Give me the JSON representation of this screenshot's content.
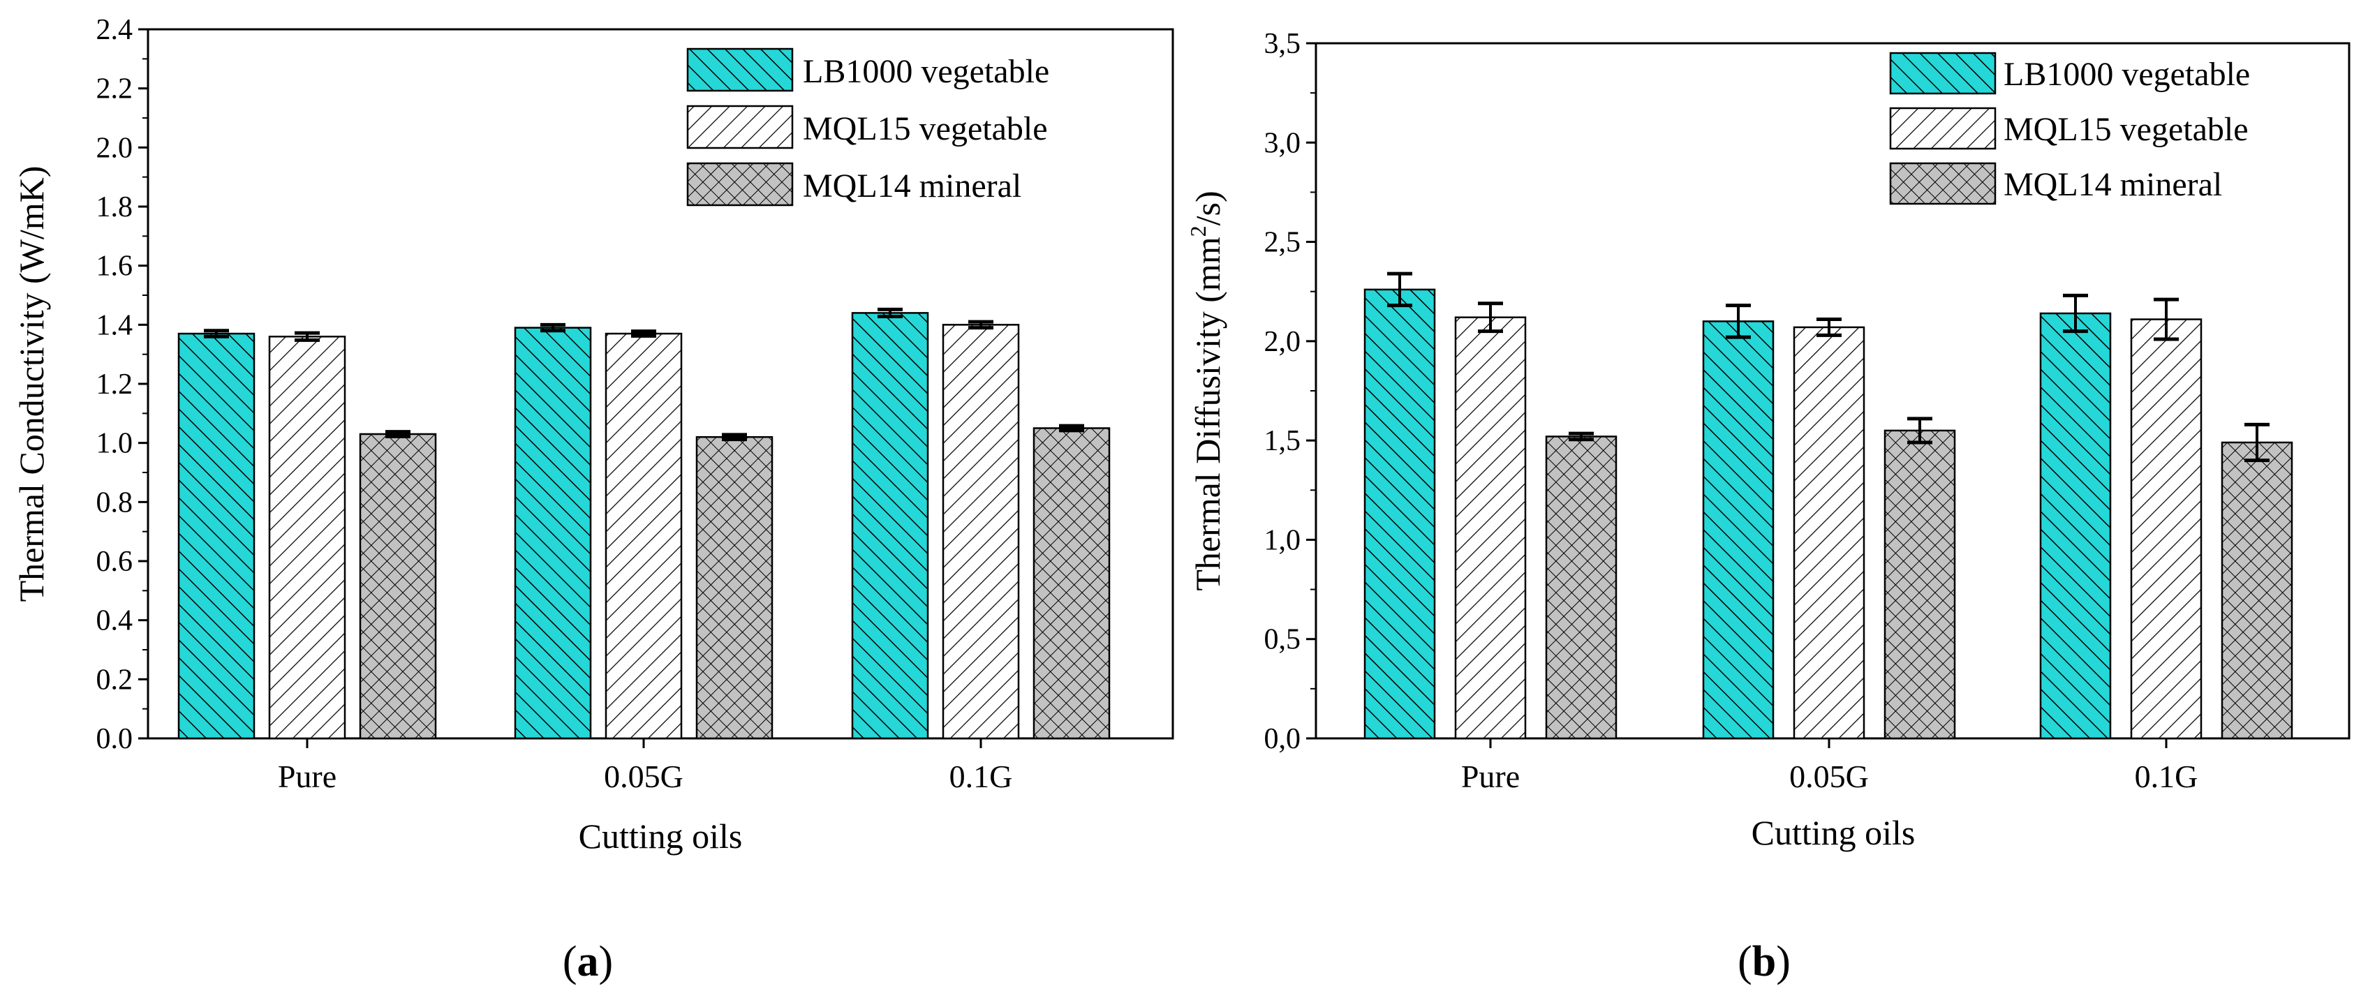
{
  "colors": {
    "lb1000": "#25d7d7",
    "mql15": "#ffffff",
    "mql14": "#c2c2c2",
    "stroke": "#000000"
  },
  "chart_data": [
    {
      "type": "bar",
      "panel_label": {
        "open": "(",
        "letter": "a",
        "close": ")"
      },
      "categories": [
        "Pure",
        "0.05G",
        "0.1G"
      ],
      "xlabel": "Cutting oils",
      "ylabel": "Thermal Conductivity (W/mK)",
      "ylim": [
        0,
        2.4
      ],
      "yticks": [
        "0.0",
        "0.2",
        "0.4",
        "0.6",
        "0.8",
        "1.0",
        "1.2",
        "1.4",
        "1.6",
        "1.8",
        "2.0",
        "2.2",
        "2.4"
      ],
      "legend_position": "top-right",
      "series": [
        {
          "name": "LB1000 vegetable",
          "key": "lb1000",
          "pattern": "back-diagonal",
          "values": [
            1.37,
            1.39,
            1.44
          ],
          "errors": [
            0.01,
            0.01,
            0.012
          ]
        },
        {
          "name": "MQL15 vegetable",
          "key": "mql15",
          "pattern": "forward-diagonal",
          "values": [
            1.36,
            1.37,
            1.4
          ],
          "errors": [
            0.012,
            0.008,
            0.01
          ]
        },
        {
          "name": "MQL14 mineral",
          "key": "mql14",
          "pattern": "crosshatch",
          "values": [
            1.03,
            1.02,
            1.05
          ],
          "errors": [
            0.008,
            0.008,
            0.008
          ]
        }
      ]
    },
    {
      "type": "bar",
      "panel_label": {
        "open": "(",
        "letter": "b",
        "close": ")"
      },
      "categories": [
        "Pure",
        "0.05G",
        "0.1G"
      ],
      "xlabel": "Cutting oils",
      "ylabel": {
        "main": "Thermal Diffusivity (mm",
        "sup": "2",
        "tail": "/s)"
      },
      "ylim": [
        0,
        3.5
      ],
      "yticks": [
        "0,0",
        "0,5",
        "1,0",
        "1,5",
        "2,0",
        "2,5",
        "3,0",
        "3,5"
      ],
      "legend_position": "top-right",
      "series": [
        {
          "name": "LB1000 vegetable",
          "key": "lb1000",
          "pattern": "back-diagonal",
          "values": [
            2.26,
            2.1,
            2.14
          ],
          "errors": [
            0.08,
            0.08,
            0.09
          ]
        },
        {
          "name": "MQL15 vegetable",
          "key": "mql15",
          "pattern": "forward-diagonal",
          "values": [
            2.12,
            2.07,
            2.11
          ],
          "errors": [
            0.07,
            0.04,
            0.1
          ]
        },
        {
          "name": "MQL14 mineral",
          "key": "mql14",
          "pattern": "crosshatch",
          "values": [
            1.52,
            1.55,
            1.49
          ],
          "errors": [
            0.015,
            0.06,
            0.09
          ]
        }
      ]
    }
  ]
}
